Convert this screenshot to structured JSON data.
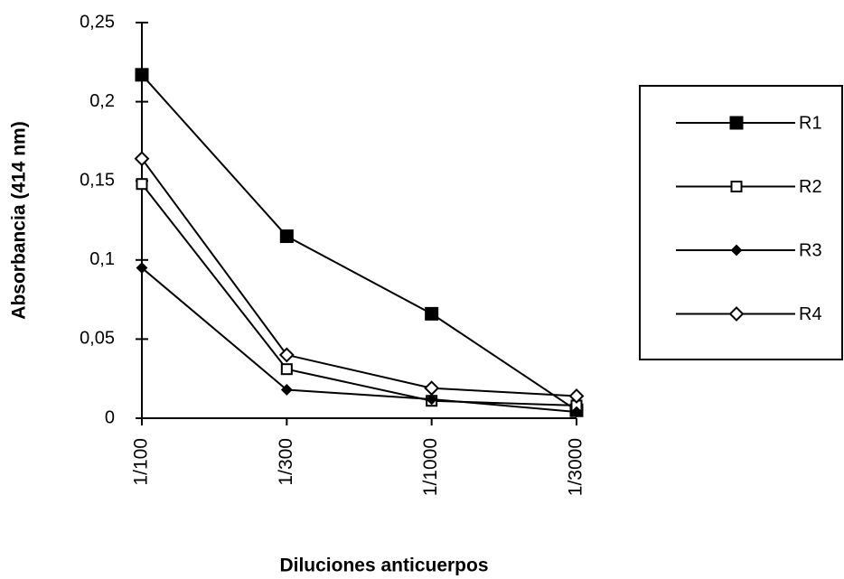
{
  "chart_data": {
    "type": "line",
    "y_label": "Absorbancia (414 nm)",
    "x_label": "Diluciones anticuerpos",
    "categories": [
      "1/100",
      "1/300",
      "1/1000",
      "1/3000"
    ],
    "series": [
      {
        "name": "R1",
        "color": "#000000",
        "marker": "square",
        "values": [
          0.217,
          0.115,
          0.066,
          0.005
        ]
      },
      {
        "name": "R2",
        "color": "#000000",
        "marker": "square-open",
        "values": [
          0.148,
          0.031,
          0.011,
          0.008
        ]
      },
      {
        "name": "R3",
        "color": "#000000",
        "marker": "diamond",
        "values": [
          0.095,
          0.018,
          0.012,
          0.004
        ]
      },
      {
        "name": "R4",
        "color": "#000000",
        "marker": "diamond-open",
        "values": [
          0.164,
          0.04,
          0.019,
          0.014
        ]
      }
    ],
    "ylim": [
      0,
      0.25
    ],
    "yticks": [
      0,
      {
        "value": 0.05,
        "label": "0,05"
      },
      {
        "value": 0.1,
        "label": "0,1"
      },
      {
        "value": 0.15,
        "label": "0,15"
      },
      {
        "value": 0.2,
        "label": "0,2"
      },
      {
        "value": 0.25,
        "label": "0,25"
      }
    ],
    "legend": "right"
  }
}
